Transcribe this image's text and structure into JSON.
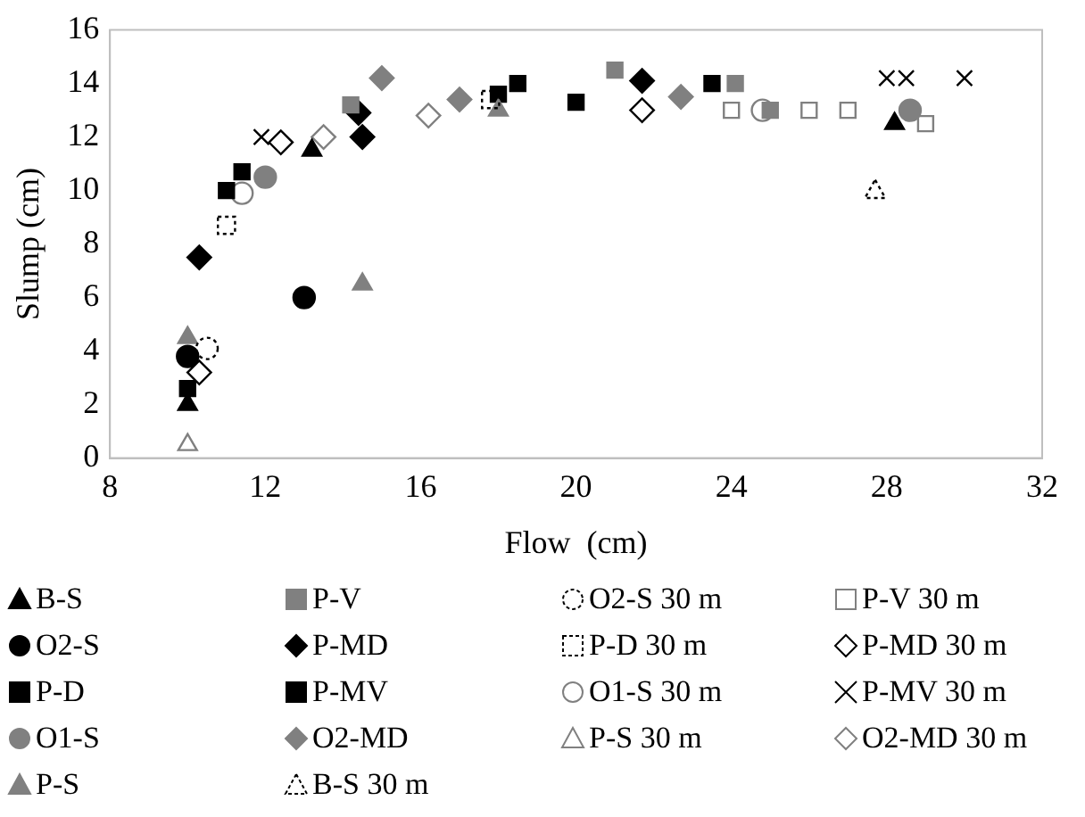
{
  "chart_data": {
    "type": "scatter",
    "xlabel": "Flow  (cm)",
    "ylabel": "Slump (cm)",
    "xlim": [
      8,
      32
    ],
    "xticks": [
      8,
      12,
      16,
      20,
      24,
      28,
      32
    ],
    "ylim": [
      0,
      16
    ],
    "yticks": [
      0,
      2,
      4,
      6,
      8,
      10,
      12,
      14,
      16
    ],
    "grid": false,
    "legend": "bottom",
    "series": [
      {
        "name": "B-S",
        "color": "#000000",
        "marker": "triangle",
        "x": [
          10,
          13.2,
          28.2
        ],
        "values": [
          2,
          11.5,
          12.5
        ]
      },
      {
        "name": "O2-S",
        "color": "#000000",
        "marker": "circle",
        "x": [
          10,
          13
        ],
        "values": [
          3.8,
          6
        ]
      },
      {
        "name": "P-D",
        "color": "#000000",
        "marker": "square",
        "x": [
          11.4,
          20
        ],
        "values": [
          10.7,
          13.3
        ]
      },
      {
        "name": "O1-S",
        "color": "#808080",
        "marker": "circle",
        "x": [
          12,
          28.6
        ],
        "values": [
          10.5,
          13
        ]
      },
      {
        "name": "P-S",
        "color": "#808080",
        "marker": "triangle",
        "x": [
          10,
          14.5,
          18
        ],
        "values": [
          4.5,
          6.5,
          13
        ]
      },
      {
        "name": "P-V",
        "color": "#808080",
        "marker": "square",
        "x": [
          14.2,
          21,
          24.1,
          25
        ],
        "values": [
          13.2,
          14.5,
          14,
          13
        ]
      },
      {
        "name": "P-MD",
        "color": "#000000",
        "marker": "diamond",
        "x": [
          10.3,
          14.4,
          14.5,
          21.7
        ],
        "values": [
          7.5,
          12.9,
          12,
          14.1
        ]
      },
      {
        "name": "P-MV",
        "color": "#000000",
        "marker": "square",
        "x": [
          10,
          11,
          18,
          18.5,
          23.5
        ],
        "values": [
          2.6,
          10,
          13.6,
          14,
          14
        ]
      },
      {
        "name": "O2-MD",
        "color": "#808080",
        "marker": "diamond",
        "x": [
          15,
          17,
          22.7
        ],
        "values": [
          14.2,
          13.4,
          13.5
        ]
      },
      {
        "name": "B-S 30 m",
        "color": "#000000",
        "marker": "triangle",
        "line_style": "dashed",
        "x": [
          27.7
        ],
        "values": [
          10
        ]
      },
      {
        "name": "O2-S 30 m",
        "color": "#000000",
        "marker": "circle",
        "line_style": "dashed",
        "x": [
          10.5
        ],
        "values": [
          4.1
        ]
      },
      {
        "name": "P-D 30 m",
        "color": "#000000",
        "marker": "square",
        "line_style": "dashed",
        "x": [
          11,
          17.8
        ],
        "values": [
          8.7,
          13.4
        ]
      },
      {
        "name": "O1-S 30 m",
        "color": "#808080",
        "marker": "circle",
        "line_style": "solid",
        "x": [
          11.4,
          24.8
        ],
        "values": [
          9.9,
          13
        ]
      },
      {
        "name": "P-S 30 m",
        "color": "#808080",
        "marker": "triangle",
        "line_style": "solid",
        "x": [
          10
        ],
        "values": [
          0.5
        ]
      },
      {
        "name": "P-V 30 m",
        "color": "#808080",
        "marker": "square",
        "line_style": "solid",
        "x": [
          24,
          26,
          27,
          29
        ],
        "values": [
          13,
          13,
          13,
          12.5
        ]
      },
      {
        "name": "P-MD 30 m",
        "color": "#000000",
        "marker": "diamond",
        "line_style": "solid",
        "x": [
          10.3,
          12.4,
          21.7
        ],
        "values": [
          3.2,
          11.8,
          13
        ]
      },
      {
        "name": "P-MV 30 m",
        "color": "#000000",
        "marker": "cross",
        "x": [
          11.9,
          28,
          28.5,
          30
        ],
        "values": [
          12,
          14.2,
          14.2,
          14.2
        ]
      },
      {
        "name": "O2-MD 30 m",
        "color": "#808080",
        "marker": "diamond",
        "line_style": "solid",
        "x": [
          13.5,
          16.2
        ],
        "values": [
          12,
          12.8
        ]
      }
    ]
  }
}
